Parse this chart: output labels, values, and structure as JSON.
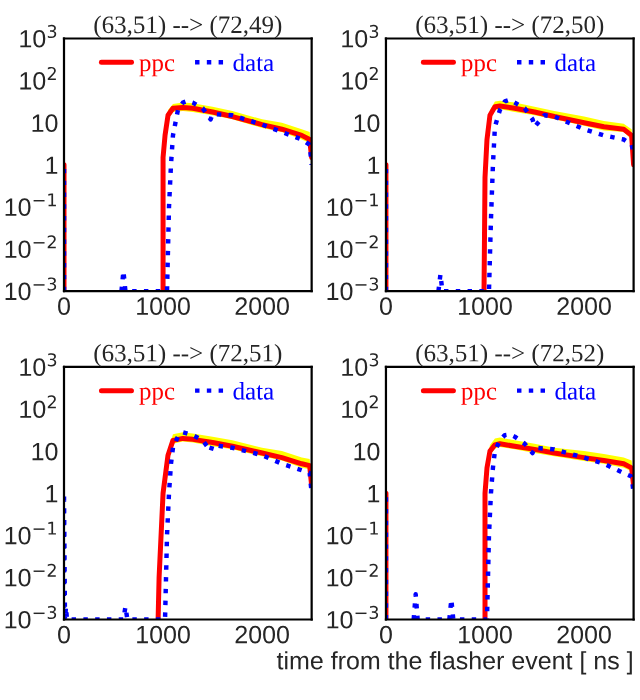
{
  "chart_data": [
    {
      "type": "line",
      "title": "(63,51) --> (72,49)",
      "log": true,
      "legend": "top",
      "grid": false,
      "xlim": [
        0,
        2500
      ],
      "xticks": [
        0,
        1000,
        2000
      ],
      "ylim": [
        0.001,
        1000
      ],
      "yticks": [
        {
          "value": 0.001,
          "label": "10$^{−3}$"
        },
        {
          "value": 0.01,
          "label": "10$^{−2}$"
        },
        {
          "value": 0.1,
          "label": "10$^{−1}$"
        },
        {
          "value": 1,
          "label": "1"
        },
        {
          "value": 10,
          "label": "10"
        },
        {
          "value": 100,
          "label": "10$^{2}$"
        },
        {
          "value": 1000,
          "label": "10$^{3}$"
        }
      ],
      "series": [
        {
          "name": "ppc",
          "color": "#ff0000",
          "line_style": "solid",
          "x": [
            0,
            0,
            20,
            1000,
            1000,
            1020,
            1050,
            1100,
            1200,
            1300,
            1500,
            1700,
            2000,
            2200,
            2400,
            2480,
            2500
          ],
          "values": [
            0.001,
            1,
            null,
            0.001,
            1.5,
            5,
            15,
            22,
            23,
            22,
            18,
            14,
            9,
            7,
            5,
            4,
            1.5
          ],
          "lower": [
            null,
            null,
            null,
            null,
            1.2,
            4,
            12,
            18,
            19,
            18,
            15,
            12,
            7.5,
            6,
            4,
            3.3,
            1.2
          ],
          "upper": [
            null,
            null,
            null,
            null,
            2,
            7,
            20,
            28,
            30,
            29,
            24,
            19,
            12,
            10,
            7,
            6,
            2
          ]
        },
        {
          "name": "data",
          "color": "#0000ff",
          "line_style": "dotted",
          "x": [
            0,
            0,
            20,
            580,
            600,
            620,
            1040,
            1060,
            1080,
            1100,
            1150,
            1200,
            1250,
            1300,
            1400,
            1480,
            1500,
            1700,
            2000,
            2200,
            2400,
            2480,
            2500
          ],
          "values": [
            0.001,
            1,
            null,
            0.001,
            0.003,
            0.001,
            0.001,
            0.1,
            1,
            5,
            20,
            30,
            33,
            30,
            22,
            12,
            16,
            15,
            9,
            6,
            4,
            3,
            1
          ]
        }
      ]
    },
    {
      "type": "line",
      "title": "(63,51) --> (72,50)",
      "log": true,
      "legend": "top",
      "grid": false,
      "xlim": [
        0,
        2500
      ],
      "xticks": [
        0,
        1000,
        2000
      ],
      "ylim": [
        0.001,
        1000
      ],
      "yticks": [
        {
          "value": 0.001,
          "label": "10$^{−3}$"
        },
        {
          "value": 0.01,
          "label": "10$^{−2}$"
        },
        {
          "value": 0.1,
          "label": "10$^{−1}$"
        },
        {
          "value": 1,
          "label": "1"
        },
        {
          "value": 10,
          "label": "10"
        },
        {
          "value": 100,
          "label": "10$^{2}$"
        },
        {
          "value": 1000,
          "label": "10$^{3}$"
        }
      ],
      "series": [
        {
          "name": "ppc",
          "color": "#ff0000",
          "line_style": "solid",
          "x": [
            0,
            0,
            20,
            990,
            1000,
            1020,
            1050,
            1100,
            1150,
            1300,
            1500,
            1700,
            2000,
            2200,
            2400,
            2480,
            2500
          ],
          "values": [
            0.001,
            1,
            null,
            0.001,
            0.5,
            4,
            15,
            24,
            25,
            22,
            18,
            14,
            10,
            8,
            7,
            5,
            1
          ],
          "lower": [
            null,
            null,
            null,
            null,
            0.4,
            3.3,
            12,
            20,
            21,
            18,
            15,
            12,
            8.5,
            6.5,
            6,
            4,
            0.8
          ],
          "upper": [
            null,
            null,
            null,
            null,
            0.8,
            6,
            20,
            32,
            33,
            30,
            24,
            19,
            14,
            11,
            9.5,
            7,
            1.5
          ]
        },
        {
          "name": "data",
          "color": "#0000ff",
          "line_style": "dotted",
          "x": [
            0,
            0,
            20,
            530,
            550,
            570,
            1040,
            1060,
            1080,
            1100,
            1150,
            1200,
            1250,
            1300,
            1400,
            1480,
            1500,
            1600,
            1700,
            2000,
            2200,
            2400,
            2480,
            2500
          ],
          "values": [
            0.001,
            1,
            null,
            0.001,
            0.0025,
            0.001,
            0.001,
            0.05,
            1,
            8,
            20,
            32,
            35,
            30,
            22,
            12,
            8,
            15,
            14,
            7,
            5,
            4,
            3,
            2
          ]
        }
      ]
    },
    {
      "type": "line",
      "title": "(63,51) --> (72,51)",
      "log": true,
      "legend": "top",
      "grid": false,
      "xlim": [
        0,
        2500
      ],
      "xticks": [
        0,
        1000,
        2000
      ],
      "ylim": [
        0.001,
        1000
      ],
      "yticks": [
        {
          "value": 0.001,
          "label": "10$^{−3}$"
        },
        {
          "value": 0.01,
          "label": "10$^{−2}$"
        },
        {
          "value": 0.1,
          "label": "10$^{−1}$"
        },
        {
          "value": 1,
          "label": "1"
        },
        {
          "value": 10,
          "label": "10"
        },
        {
          "value": 100,
          "label": "10$^{2}$"
        },
        {
          "value": 1000,
          "label": "10$^{3}$"
        }
      ],
      "series": [
        {
          "name": "ppc",
          "color": "#ff0000",
          "line_style": "solid",
          "x": [
            950,
            960,
            1000,
            1050,
            1100,
            1200,
            1300,
            1500,
            1700,
            2000,
            2200,
            2400,
            2480,
            2500
          ],
          "values": [
            0.001,
            0.01,
            1,
            8,
            18,
            20,
            19,
            16,
            13,
            9,
            7,
            5,
            4.5,
            1.5
          ],
          "lower": [
            null,
            null,
            0.8,
            6.5,
            15,
            17,
            16,
            13,
            11,
            7.5,
            6,
            4,
            3.7,
            1.2
          ],
          "upper": [
            null,
            null,
            1.5,
            11,
            25,
            28,
            26,
            22,
            18,
            12,
            10,
            7,
            6.5,
            2
          ]
        },
        {
          "name": "data",
          "color": "#0000ff",
          "line_style": "dotted",
          "x": [
            0,
            0,
            10,
            20,
            30,
            600,
            620,
            640,
            1020,
            1040,
            1060,
            1080,
            1100,
            1150,
            1200,
            1300,
            1400,
            1480,
            1500,
            1700,
            2000,
            2200,
            2400,
            2480,
            2500
          ],
          "values": [
            0.001,
            1,
            0.001,
            0.002,
            0.001,
            0.001,
            0.002,
            0.001,
            0.001,
            0.1,
            1,
            5,
            12,
            22,
            28,
            24,
            18,
            10,
            14,
            12,
            8,
            5,
            3.5,
            3,
            1
          ]
        }
      ]
    },
    {
      "type": "line",
      "title": "(63,51) --> (72,52)",
      "xlabel": "time from the flasher event [ ns ]",
      "log": true,
      "legend": "top",
      "grid": false,
      "xlim": [
        0,
        2500
      ],
      "xticks": [
        0,
        1000,
        2000
      ],
      "ylim": [
        0.001,
        1000
      ],
      "yticks": [
        {
          "value": 0.001,
          "label": "10$^{−3}$"
        },
        {
          "value": 0.01,
          "label": "10$^{−2}$"
        },
        {
          "value": 0.1,
          "label": "10$^{−1}$"
        },
        {
          "value": 1,
          "label": "1"
        },
        {
          "value": 10,
          "label": "10"
        },
        {
          "value": 100,
          "label": "10$^{2}$"
        },
        {
          "value": 1000,
          "label": "10$^{3}$"
        }
      ],
      "series": [
        {
          "name": "ppc",
          "color": "#ff0000",
          "line_style": "solid",
          "x": [
            0,
            0,
            20,
            1000,
            1000,
            1020,
            1050,
            1100,
            1150,
            1300,
            1500,
            1700,
            2000,
            2200,
            2400,
            2480,
            2500
          ],
          "values": [
            0.001,
            1,
            null,
            0.001,
            1,
            4,
            10,
            14,
            15,
            13,
            11,
            9,
            7,
            6,
            5,
            4,
            1.5
          ],
          "lower": [
            null,
            null,
            null,
            null,
            0.8,
            3.3,
            8,
            11.5,
            12.5,
            11,
            9,
            7.5,
            5.8,
            5,
            4,
            3.3,
            1.2
          ],
          "upper": [
            null,
            null,
            null,
            null,
            1.5,
            6,
            14,
            20,
            21,
            18,
            15,
            12,
            10,
            8.5,
            7,
            6,
            2
          ]
        },
        {
          "name": "data",
          "color": "#0000ff",
          "line_style": "dotted",
          "x": [
            0,
            0,
            20,
            280,
            300,
            320,
            640,
            660,
            680,
            1020,
            1040,
            1060,
            1080,
            1100,
            1150,
            1200,
            1250,
            1300,
            1400,
            1480,
            1500,
            1700,
            2000,
            2200,
            2400,
            2480,
            2500
          ],
          "values": [
            0.001,
            1,
            null,
            0.001,
            0.004,
            0.001,
            0.001,
            0.003,
            0.001,
            0.001,
            0.1,
            1,
            4,
            10,
            18,
            24,
            25,
            22,
            15,
            9,
            12,
            11,
            7,
            5,
            3,
            2.5,
            1
          ]
        }
      ]
    }
  ]
}
